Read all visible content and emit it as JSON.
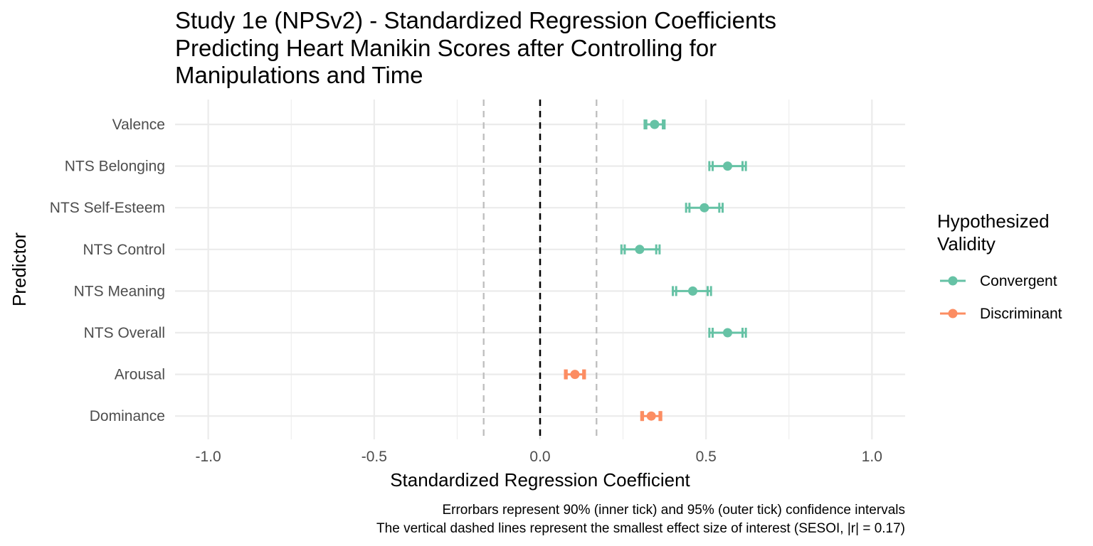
{
  "chart_data": {
    "type": "scatter",
    "title": [
      "Study 1e (NPSv2) - Standardized Regression Coefficients",
      "Predicting Heart Manikin Scores after Controlling for",
      "Manipulations and Time"
    ],
    "xlabel": "Standardized Regression Coefficient",
    "ylabel": "Predictor",
    "xlim": [
      -1.1,
      1.1
    ],
    "x_ticks": [
      -1.0,
      -0.5,
      0.0,
      0.5,
      1.0
    ],
    "x_tick_labels": [
      "-1.0",
      "-0.5",
      "0.0",
      "0.5",
      "1.0"
    ],
    "categories": [
      "Valence",
      "NTS Belonging",
      "NTS Self-Esteem",
      "NTS Control",
      "NTS Meaning",
      "NTS Overall",
      "Arousal",
      "Dominance"
    ],
    "grid": true,
    "sesoi": 0.17,
    "legend": {
      "title": [
        "Hypothesized",
        "Validity"
      ],
      "position": "right",
      "entries": [
        {
          "name": "Convergent",
          "color": "#66C2A5"
        },
        {
          "name": "Discriminant",
          "color": "#FC8D62"
        }
      ]
    },
    "series": [
      {
        "name": "Convergent",
        "color": "#66C2A5",
        "points": [
          {
            "predictor": "Valence",
            "estimate": 0.345,
            "ci90": [
              0.32,
              0.37
            ],
            "ci95": [
              0.315,
              0.375
            ]
          },
          {
            "predictor": "NTS Belonging",
            "estimate": 0.565,
            "ci90": [
              0.52,
              0.61
            ],
            "ci95": [
              0.51,
              0.62
            ]
          },
          {
            "predictor": "NTS Self-Esteem",
            "estimate": 0.495,
            "ci90": [
              0.45,
              0.54
            ],
            "ci95": [
              0.44,
              0.55
            ]
          },
          {
            "predictor": "NTS Control",
            "estimate": 0.3,
            "ci90": [
              0.255,
              0.35
            ],
            "ci95": [
              0.245,
              0.36
            ]
          },
          {
            "predictor": "NTS Meaning",
            "estimate": 0.46,
            "ci90": [
              0.41,
              0.505
            ],
            "ci95": [
              0.4,
              0.515
            ]
          },
          {
            "predictor": "NTS Overall",
            "estimate": 0.565,
            "ci90": [
              0.52,
              0.61
            ],
            "ci95": [
              0.51,
              0.62
            ]
          }
        ]
      },
      {
        "name": "Discriminant",
        "color": "#FC8D62",
        "points": [
          {
            "predictor": "Arousal",
            "estimate": 0.105,
            "ci90": [
              0.08,
              0.13
            ],
            "ci95": [
              0.075,
              0.135
            ]
          },
          {
            "predictor": "Dominance",
            "estimate": 0.335,
            "ci90": [
              0.31,
              0.36
            ],
            "ci95": [
              0.305,
              0.365
            ]
          }
        ]
      }
    ],
    "caption": [
      "Errorbars represent 90% (inner tick) and 95% (outer tick) confidence intervals",
      "The vertical dashed lines represent the smallest effect size of interest (SESOI, |r| = 0.17)"
    ]
  }
}
